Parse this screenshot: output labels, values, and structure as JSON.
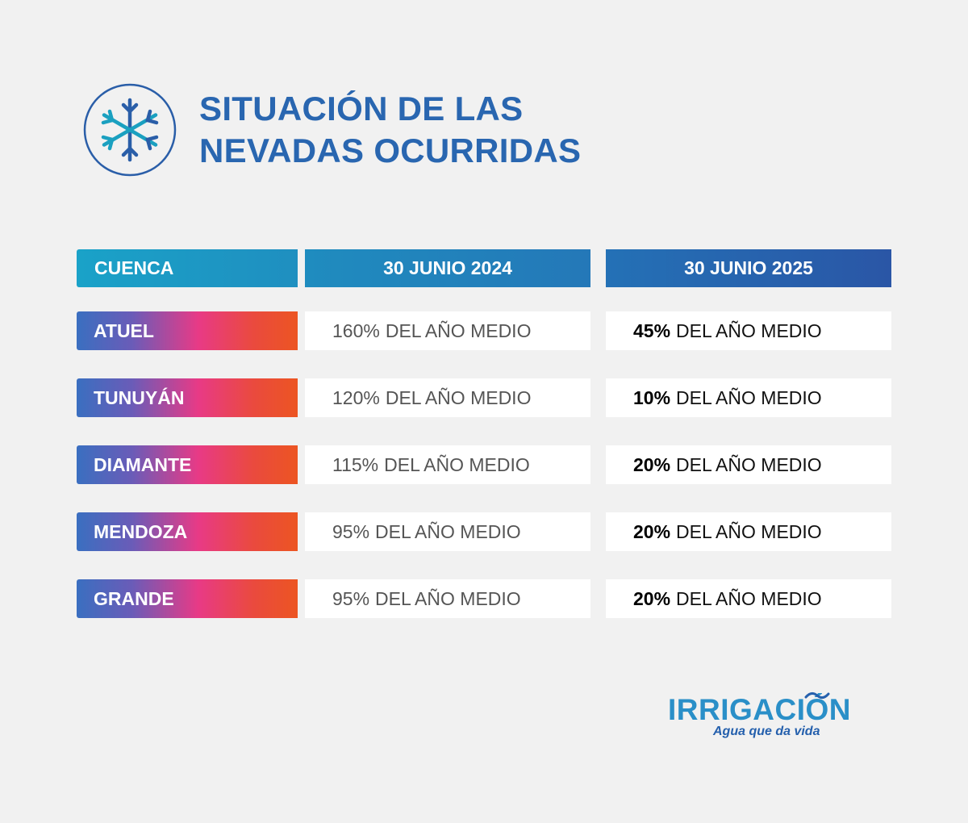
{
  "header": {
    "title_line1": "SITUACIÓN DE LAS",
    "title_line2": "NEVADAS OCURRIDAS",
    "icon": "snowflake-icon"
  },
  "table": {
    "columns": [
      "CUENCA",
      "30 JUNIO 2024",
      "30 JUNIO 2025"
    ],
    "suffix": "DEL AÑO MEDIO",
    "rows": [
      {
        "cuenca": "ATUEL",
        "v2024": "160%",
        "v2025": "45%"
      },
      {
        "cuenca": "TUNUYÁN",
        "v2024": "120%",
        "v2025": "10%"
      },
      {
        "cuenca": "DIAMANTE",
        "v2024": "115%",
        "v2025": "20%"
      },
      {
        "cuenca": "MENDOZA",
        "v2024": "95%",
        "v2025": "20%"
      },
      {
        "cuenca": "GRANDE",
        "v2024": "95%",
        "v2025": "20%"
      }
    ]
  },
  "logo": {
    "name_start": "IRRIGACI",
    "name_o": "Ó",
    "name_end": "N",
    "tagline": "Agua que da vida"
  },
  "colors": {
    "background": "#f1f1f1",
    "title": "#2966b0",
    "logo": "#2a8fc8"
  }
}
